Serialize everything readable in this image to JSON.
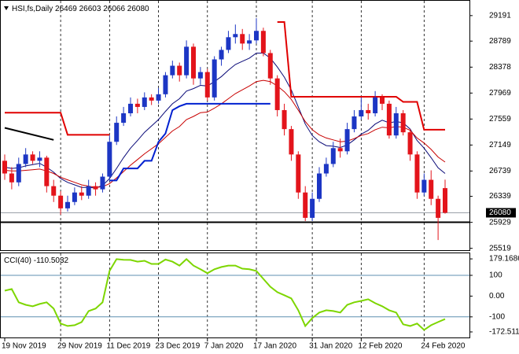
{
  "chart_data": {
    "type": "candlestick",
    "title": "HSI,fs,Daily",
    "categories": [
      "19 Nov 2019",
      null,
      null,
      null,
      null,
      null,
      null,
      null,
      "29 Nov 2019",
      null,
      null,
      null,
      null,
      null,
      null,
      "11 Dec 2019",
      null,
      null,
      null,
      null,
      null,
      null,
      "23 Dec 2019",
      null,
      null,
      null,
      null,
      null,
      null,
      "7 Jan 2020",
      null,
      null,
      null,
      null,
      null,
      null,
      "17 Jan 2020",
      null,
      null,
      null,
      null,
      null,
      null,
      null,
      "31 Jan 2020",
      null,
      null,
      null,
      null,
      null,
      null,
      "12 Feb 2020",
      null,
      null,
      null,
      null,
      null,
      null,
      null,
      null,
      "24 Feb 2020",
      null,
      null,
      null
    ],
    "open": [
      26900,
      26700,
      26560,
      26850,
      27000,
      26900,
      26950,
      26500,
      26350,
      26150,
      26250,
      26400,
      26350,
      26500,
      26450,
      26650,
      27200,
      27500,
      27650,
      27800,
      27750,
      27900,
      27850,
      27950,
      28250,
      28400,
      28250,
      28700,
      28200,
      28300,
      27900,
      28500,
      28650,
      28850,
      28900,
      28750,
      28800,
      28950,
      28600,
      28200,
      27700,
      27400,
      27000,
      26400,
      26000,
      26300,
      26700,
      26850,
      27100,
      27050,
      27400,
      27600,
      27700,
      27650,
      27900,
      27800,
      27300,
      27650,
      27350,
      27000,
      26400,
      26600,
      26300,
      26469
    ],
    "high": [
      27000,
      26800,
      26950,
      27100,
      27050,
      27050,
      26980,
      26600,
      26420,
      26350,
      26480,
      26500,
      26600,
      26560,
      26700,
      27300,
      27600,
      27750,
      27900,
      27880,
      27980,
      27950,
      28050,
      28300,
      28480,
      28450,
      28800,
      28750,
      28380,
      28350,
      28550,
      28700,
      28950,
      29050,
      28980,
      28900,
      29150,
      29000,
      28650,
      28250,
      27800,
      27450,
      27050,
      26500,
      26400,
      26800,
      26950,
      27200,
      27250,
      27500,
      27700,
      27900,
      27800,
      28000,
      27950,
      27850,
      27750,
      27700,
      27400,
      27050,
      26700,
      26750,
      26350,
      26603
    ],
    "low": [
      26600,
      26450,
      26500,
      26800,
      26850,
      26800,
      26400,
      26250,
      26050,
      26100,
      26200,
      26280,
      26300,
      26350,
      26400,
      26600,
      27150,
      27450,
      27600,
      27650,
      27700,
      27780,
      27800,
      27900,
      28200,
      28150,
      28200,
      28100,
      28100,
      27850,
      27850,
      28400,
      28600,
      28750,
      28650,
      28650,
      28750,
      28550,
      28100,
      27600,
      27300,
      26900,
      26300,
      25950,
      25950,
      26250,
      26650,
      26800,
      26950,
      27000,
      27350,
      27550,
      27550,
      27600,
      27700,
      27250,
      27250,
      27300,
      26900,
      26300,
      26350,
      26200,
      25650,
      26066
    ],
    "close": [
      26700,
      26560,
      26850,
      27000,
      26900,
      26950,
      26500,
      26350,
      26150,
      26250,
      26400,
      26350,
      26500,
      26450,
      26650,
      27200,
      27500,
      27650,
      27800,
      27750,
      27900,
      27850,
      27950,
      28250,
      28400,
      28250,
      28700,
      28200,
      28300,
      27900,
      28500,
      28650,
      28850,
      28900,
      28750,
      28800,
      28950,
      28600,
      28200,
      27700,
      27400,
      27000,
      26400,
      26000,
      26300,
      26700,
      26850,
      27100,
      27050,
      27400,
      27600,
      27700,
      27650,
      27900,
      27800,
      27300,
      27650,
      27350,
      27000,
      26400,
      26600,
      26300,
      26000,
      26080
    ],
    "up_color": "#1c36c4",
    "down_color": "#e3141b",
    "ylim": [
      25490,
      29400
    ],
    "yticks": [
      25519,
      25929,
      26339,
      26739,
      27149,
      27559,
      27969,
      28378,
      28789,
      29191
    ],
    "grid": true,
    "overlays": [
      {
        "color": "#0a0a78",
        "values": [
          26800,
          26780,
          26790,
          26820,
          26840,
          26860,
          26800,
          26720,
          26620,
          26560,
          26520,
          26480,
          26480,
          26470,
          26510,
          26620,
          26780,
          26950,
          27100,
          27220,
          27350,
          27450,
          27550,
          27680,
          27800,
          27880,
          28000,
          28040,
          28090,
          28080,
          28150,
          28230,
          28330,
          28420,
          28470,
          28520,
          28600,
          28600,
          28520,
          28380,
          28220,
          28020,
          27750,
          27480,
          27300,
          27200,
          27140,
          27130,
          27110,
          27150,
          27230,
          27320,
          27380,
          27480,
          27540,
          27500,
          27520,
          27500,
          27400,
          27220,
          27100,
          26950,
          26790,
          26700
        ]
      },
      {
        "color": "#c80000",
        "values": [
          26750,
          26740,
          26740,
          26750,
          26760,
          26770,
          26740,
          26700,
          26640,
          26600,
          26560,
          26520,
          26500,
          26480,
          26490,
          26540,
          26630,
          26730,
          26830,
          26920,
          27010,
          27090,
          27170,
          27270,
          27370,
          27440,
          27550,
          27600,
          27660,
          27670,
          27730,
          27800,
          27880,
          27960,
          28020,
          28080,
          28150,
          28170,
          28150,
          28080,
          27990,
          27870,
          27700,
          27520,
          27390,
          27310,
          27260,
          27230,
          27200,
          27210,
          27250,
          27300,
          27330,
          27390,
          27430,
          27420,
          27440,
          27430,
          27380,
          27260,
          27180,
          27080,
          26960,
          26880
        ]
      },
      {
        "color": "#e00000",
        "values": [
          27660,
          27660,
          27660,
          27660,
          27660,
          27660,
          27660,
          27660,
          27660,
          27310,
          27310,
          27310,
          27310,
          27310,
          27310,
          27310,
          null,
          null,
          null,
          null,
          null,
          null,
          null,
          null,
          null,
          null,
          null,
          null,
          null,
          null,
          null,
          null,
          null,
          null,
          null,
          null,
          null,
          null,
          null,
          29090,
          29090,
          27910,
          27910,
          27910,
          27910,
          27910,
          27910,
          27910,
          27910,
          27910,
          27910,
          27910,
          27910,
          27910,
          27910,
          27910,
          27910,
          27830,
          27830,
          27830,
          27390,
          27390,
          27390,
          27390
        ]
      },
      {
        "color": "#0020d0",
        "values": [
          null,
          null,
          null,
          null,
          null,
          null,
          null,
          null,
          null,
          null,
          null,
          null,
          null,
          null,
          null,
          26590,
          26590,
          26780,
          26780,
          26780,
          26900,
          26900,
          27200,
          27330,
          27700,
          27760,
          27800,
          27800,
          27800,
          27800,
          27800,
          27800,
          27800,
          27800,
          27800,
          27800,
          27800,
          27800,
          27800,
          null,
          null,
          null,
          null,
          null,
          null,
          null,
          null,
          null,
          null,
          null,
          null,
          null,
          null,
          null,
          null,
          null,
          null,
          null,
          null,
          null,
          null,
          null,
          null,
          null
        ]
      }
    ],
    "trendline": {
      "x": [
        0,
        7
      ],
      "values": [
        27420,
        27230
      ],
      "color": "#000000"
    },
    "hline": {
      "value": 25930,
      "color": "#000000"
    },
    "indicator": {
      "title": "CCI(40)",
      "color": "#7dd600",
      "values": [
        26,
        34,
        -30,
        -42,
        -49,
        -38,
        -30,
        -60,
        -132,
        -144,
        -140,
        -125,
        -72,
        -60,
        -30,
        121,
        178,
        175,
        174,
        166,
        170,
        155,
        155,
        176,
        166,
        147,
        178,
        147,
        129,
        110,
        129,
        140,
        147,
        147,
        132,
        129,
        121,
        83,
        45,
        19,
        4,
        -11,
        -68,
        -144,
        -106,
        -79,
        -68,
        -72,
        -79,
        -42,
        -30,
        -23,
        -15,
        -34,
        -49,
        -68,
        -79,
        -136,
        -144,
        -132,
        -163,
        -140,
        -125,
        -110.5032
      ],
      "ylim": [
        -203,
        206
      ],
      "yticks": [
        179.1686,
        100,
        {
          "value": 0,
          "label": "0.00"
        },
        -100,
        -172.511
      ],
      "levels": [
        100,
        -100
      ]
    }
  }
}
